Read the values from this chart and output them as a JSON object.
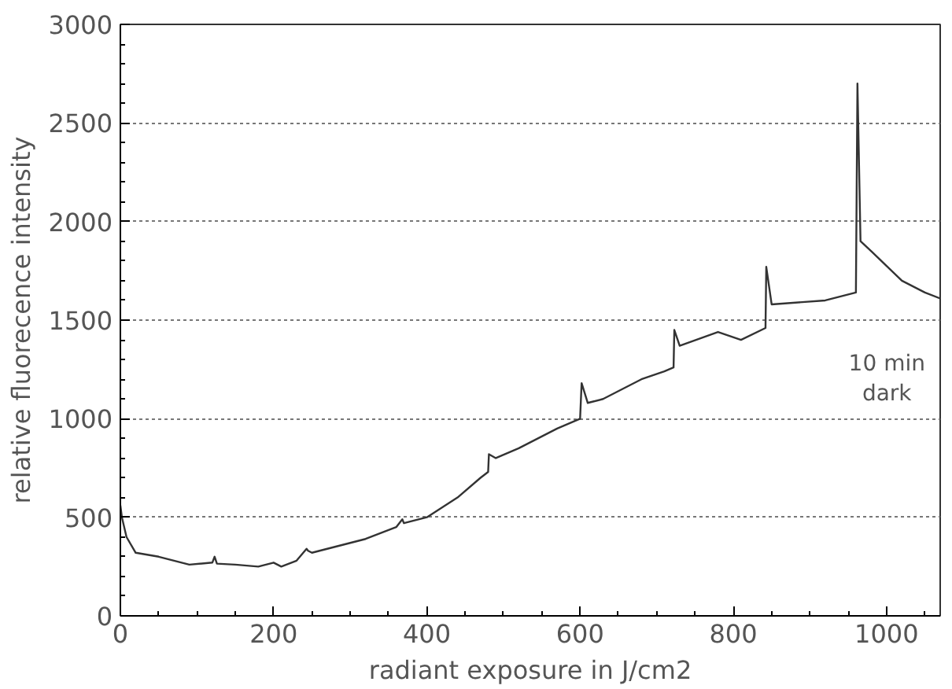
{
  "chart_data": {
    "type": "line",
    "xlabel": "radiant exposure in J/cm2",
    "ylabel": "relative fluorecence intensity",
    "x": [
      0,
      2,
      8,
      20,
      50,
      90,
      120,
      123,
      126,
      150,
      180,
      200,
      210,
      230,
      243,
      245,
      250,
      290,
      320,
      360,
      368,
      370,
      400,
      440,
      470,
      480,
      481,
      490,
      520,
      570,
      600,
      602,
      610,
      630,
      680,
      710,
      722,
      723,
      730,
      780,
      810,
      842,
      843,
      850,
      920,
      960,
      962,
      966,
      980,
      1020,
      1050,
      1070
    ],
    "values": [
      560,
      500,
      400,
      320,
      300,
      260,
      270,
      300,
      265,
      260,
      250,
      270,
      250,
      280,
      340,
      330,
      320,
      360,
      390,
      450,
      490,
      470,
      500,
      600,
      700,
      730,
      820,
      800,
      850,
      950,
      1000,
      1180,
      1080,
      1100,
      1200,
      1240,
      1260,
      1450,
      1370,
      1440,
      1400,
      1460,
      1770,
      1580,
      1600,
      1640,
      2700,
      1900,
      1850,
      1700,
      1640,
      1610
    ],
    "color": "#333333",
    "line_style": "solid",
    "marker": "none",
    "xlim": [
      0,
      1070
    ],
    "ylim": [
      0,
      3000
    ],
    "xticks": [
      0,
      200,
      400,
      600,
      800,
      1000
    ],
    "yticks": [
      0,
      500,
      1000,
      1500,
      2000,
      2500,
      3000
    ],
    "grid": "y",
    "annotations": [
      "10 min\ndark"
    ]
  }
}
